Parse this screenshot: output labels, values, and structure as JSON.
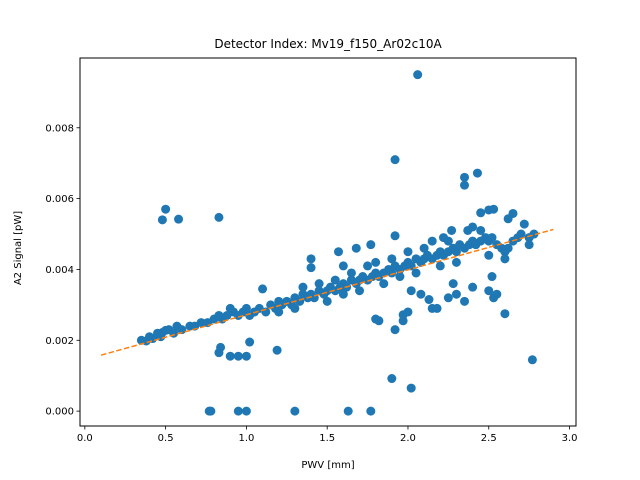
{
  "chart_data": {
    "type": "scatter",
    "title": "Detector Index: Mv19_f150_Ar02c10A",
    "xlabel": "PWV [mm]",
    "ylabel": "A2 Signal [pW]",
    "xlim": [
      -0.03,
      3.04
    ],
    "ylim": [
      -0.00042,
      0.00997
    ],
    "xticks": [
      0.0,
      0.5,
      1.0,
      1.5,
      2.0,
      2.5,
      3.0
    ],
    "xtick_labels": [
      "0.0",
      "0.5",
      "1.0",
      "1.5",
      "2.0",
      "2.5",
      "3.0"
    ],
    "yticks": [
      0.0,
      0.002,
      0.004,
      0.006,
      0.008
    ],
    "ytick_labels": [
      "0.000",
      "0.002",
      "0.004",
      "0.006",
      "0.008"
    ],
    "colors": {
      "points": "#1f77b4",
      "fit": "#ff7f0e"
    },
    "fit_line": {
      "x": [
        0.1,
        2.9
      ],
      "y": [
        0.00158,
        0.00513
      ],
      "style": "dashed"
    },
    "series": [
      {
        "name": "A2 Signal",
        "points": [
          [
            0.48,
            0.0054
          ],
          [
            0.5,
            0.0057
          ],
          [
            0.58,
            0.00542
          ],
          [
            0.83,
            0.00547
          ],
          [
            2.06,
            0.0095
          ],
          [
            1.92,
            0.0071
          ],
          [
            2.35,
            0.0066
          ],
          [
            2.35,
            0.00638
          ],
          [
            2.43,
            0.00672
          ],
          [
            2.5,
            0.00568
          ],
          [
            2.53,
            0.0057
          ],
          [
            2.65,
            0.00558
          ],
          [
            2.45,
            0.0056
          ],
          [
            2.62,
            0.00543
          ],
          [
            2.72,
            0.00528
          ],
          [
            2.75,
            0.0047
          ],
          [
            2.4,
            0.0052
          ],
          [
            0.77,
            0.0
          ],
          [
            0.78,
            0.0
          ],
          [
            0.95,
            0.0
          ],
          [
            1.0,
            0.0
          ],
          [
            1.3,
            0.0
          ],
          [
            1.63,
            0.0
          ],
          [
            1.77,
            0.0
          ],
          [
            2.02,
            0.00065
          ],
          [
            1.9,
            0.00092
          ],
          [
            0.83,
            0.00165
          ],
          [
            0.84,
            0.0018
          ],
          [
            0.9,
            0.00155
          ],
          [
            0.95,
            0.00155
          ],
          [
            1.0,
            0.00155
          ],
          [
            1.02,
            0.00195
          ],
          [
            1.19,
            0.00172
          ],
          [
            2.77,
            0.00145
          ],
          [
            1.8,
            0.0026
          ],
          [
            1.82,
            0.00255
          ],
          [
            1.92,
            0.0023
          ],
          [
            1.97,
            0.00255
          ],
          [
            1.97,
            0.00272
          ],
          [
            2.0,
            0.0028
          ],
          [
            2.02,
            0.0034
          ],
          [
            2.08,
            0.0033
          ],
          [
            2.15,
            0.0029
          ],
          [
            2.18,
            0.0029
          ],
          [
            2.25,
            0.0032
          ],
          [
            2.3,
            0.0033
          ],
          [
            2.35,
            0.0031
          ],
          [
            2.4,
            0.0035
          ],
          [
            2.5,
            0.0034
          ],
          [
            2.53,
            0.0032
          ],
          [
            2.55,
            0.0033
          ],
          [
            2.6,
            0.00275
          ],
          [
            2.52,
            0.0038
          ],
          [
            2.13,
            0.00315
          ],
          [
            2.28,
            0.0036
          ],
          [
            1.1,
            0.00345
          ],
          [
            1.0,
            0.0029
          ],
          [
            0.9,
            0.0029
          ],
          [
            0.98,
            0.0028
          ],
          [
            1.4,
            0.00405
          ],
          [
            1.4,
            0.0043
          ],
          [
            1.57,
            0.0045
          ],
          [
            1.68,
            0.0046
          ],
          [
            1.77,
            0.0047
          ],
          [
            1.92,
            0.00495
          ],
          [
            2.15,
            0.0048
          ],
          [
            2.22,
            0.0049
          ],
          [
            2.37,
            0.0051
          ],
          [
            2.27,
            0.0051
          ],
          [
            0.35,
            0.002
          ],
          [
            0.38,
            0.00198
          ],
          [
            0.4,
            0.0021
          ],
          [
            0.42,
            0.00205
          ],
          [
            0.45,
            0.0022
          ],
          [
            0.47,
            0.0021
          ],
          [
            0.48,
            0.00222
          ],
          [
            0.5,
            0.00228
          ],
          [
            0.52,
            0.0023
          ],
          [
            0.55,
            0.0022
          ],
          [
            0.57,
            0.0024
          ],
          [
            0.6,
            0.0023
          ],
          [
            0.65,
            0.0024
          ],
          [
            0.68,
            0.0024
          ],
          [
            0.72,
            0.0025
          ],
          [
            0.76,
            0.0025
          ],
          [
            0.8,
            0.0026
          ],
          [
            0.83,
            0.0027
          ],
          [
            0.85,
            0.0026
          ],
          [
            0.88,
            0.0027
          ],
          [
            0.92,
            0.0028
          ],
          [
            0.95,
            0.0027
          ],
          [
            1.02,
            0.0027
          ],
          [
            1.05,
            0.0028
          ],
          [
            1.08,
            0.0029
          ],
          [
            1.12,
            0.0028
          ],
          [
            1.15,
            0.003
          ],
          [
            1.18,
            0.0029
          ],
          [
            1.2,
            0.0031
          ],
          [
            1.22,
            0.003
          ],
          [
            1.25,
            0.0031
          ],
          [
            1.28,
            0.003
          ],
          [
            1.3,
            0.0032
          ],
          [
            1.33,
            0.0031
          ],
          [
            1.35,
            0.0033
          ],
          [
            1.38,
            0.0032
          ],
          [
            1.4,
            0.0033
          ],
          [
            1.42,
            0.0032
          ],
          [
            1.45,
            0.0034
          ],
          [
            1.48,
            0.0033
          ],
          [
            1.5,
            0.0034
          ],
          [
            1.52,
            0.0035
          ],
          [
            1.55,
            0.0034
          ],
          [
            1.58,
            0.0035
          ],
          [
            1.6,
            0.0036
          ],
          [
            1.62,
            0.0035
          ],
          [
            1.65,
            0.0037
          ],
          [
            1.68,
            0.0036
          ],
          [
            1.7,
            0.0037
          ],
          [
            1.72,
            0.0038
          ],
          [
            1.75,
            0.0037
          ],
          [
            1.78,
            0.0038
          ],
          [
            1.8,
            0.0039
          ],
          [
            1.82,
            0.0038
          ],
          [
            1.85,
            0.0039
          ],
          [
            1.88,
            0.004
          ],
          [
            1.9,
            0.0039
          ],
          [
            1.92,
            0.0041
          ],
          [
            1.95,
            0.004
          ],
          [
            1.98,
            0.0041
          ],
          [
            2.0,
            0.0042
          ],
          [
            2.02,
            0.0041
          ],
          [
            2.05,
            0.0043
          ],
          [
            2.08,
            0.0042
          ],
          [
            2.1,
            0.0043
          ],
          [
            2.12,
            0.0044
          ],
          [
            2.15,
            0.0043
          ],
          [
            2.18,
            0.0044
          ],
          [
            2.2,
            0.0045
          ],
          [
            2.22,
            0.0044
          ],
          [
            2.25,
            0.0045
          ],
          [
            2.28,
            0.0046
          ],
          [
            2.3,
            0.0045
          ],
          [
            2.32,
            0.0047
          ],
          [
            2.35,
            0.0046
          ],
          [
            2.38,
            0.0047
          ],
          [
            2.4,
            0.0048
          ],
          [
            2.42,
            0.0047
          ],
          [
            2.45,
            0.0048
          ],
          [
            2.48,
            0.0049
          ],
          [
            2.5,
            0.0048
          ],
          [
            2.52,
            0.0049
          ],
          [
            2.55,
            0.0047
          ],
          [
            2.58,
            0.0046
          ],
          [
            2.6,
            0.0045
          ],
          [
            2.62,
            0.0046
          ],
          [
            2.65,
            0.0048
          ],
          [
            2.68,
            0.0049
          ],
          [
            2.7,
            0.005
          ],
          [
            2.75,
            0.0049
          ],
          [
            2.78,
            0.005
          ],
          [
            2.2,
            0.0041
          ],
          [
            2.3,
            0.0042
          ],
          [
            2.5,
            0.0044
          ],
          [
            2.6,
            0.0043
          ],
          [
            1.7,
            0.0034
          ],
          [
            1.6,
            0.0033
          ],
          [
            1.5,
            0.0031
          ],
          [
            1.3,
            0.0029
          ],
          [
            1.2,
            0.0028
          ],
          [
            1.85,
            0.0036
          ],
          [
            1.95,
            0.0038
          ],
          [
            2.05,
            0.0039
          ],
          [
            2.1,
            0.0046
          ],
          [
            2.0,
            0.0045
          ],
          [
            1.9,
            0.0043
          ],
          [
            1.75,
            0.0041
          ],
          [
            1.65,
            0.0039
          ],
          [
            1.55,
            0.0037
          ],
          [
            1.45,
            0.0036
          ],
          [
            1.35,
            0.0035
          ],
          [
            1.6,
            0.0041
          ],
          [
            1.8,
            0.0042
          ],
          [
            2.25,
            0.0048
          ],
          [
            2.45,
            0.0051
          ]
        ]
      }
    ]
  }
}
